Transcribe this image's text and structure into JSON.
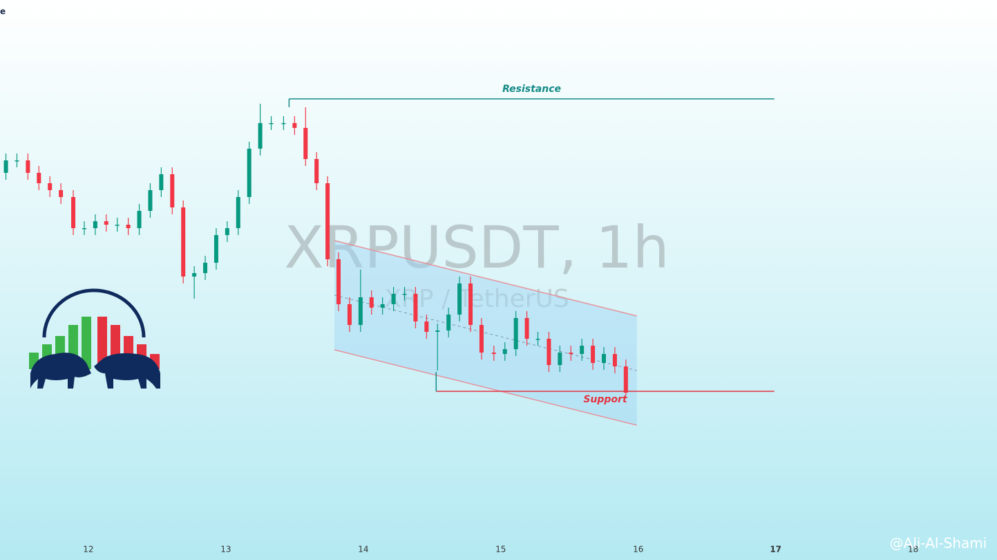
{
  "chart_data": {
    "type": "candlestick",
    "title_fragment": "e",
    "watermark": "XRPUSDT, 1h",
    "watermark_subtitle": "XRP / TetherUS",
    "credit": "@Ali-Al-Shami",
    "up_color": "#089981",
    "down_color": "#f23645",
    "x": [
      11.4,
      11.48,
      11.56,
      11.64,
      11.72,
      11.8,
      11.89,
      11.97,
      12.05,
      12.13,
      12.21,
      12.29,
      12.37,
      12.45,
      12.53,
      12.61,
      12.69,
      12.77,
      12.85,
      12.93,
      13.01,
      13.09,
      13.17,
      13.25,
      13.33,
      13.42,
      13.5,
      13.58,
      13.66,
      13.74,
      13.82,
      13.9,
      13.98,
      14.06,
      14.14,
      14.22,
      14.3,
      14.38,
      14.46,
      14.54,
      14.62,
      14.7,
      14.78,
      14.86,
      14.95,
      15.03,
      15.11,
      15.19,
      15.27,
      15.35,
      15.43,
      15.51,
      15.59,
      15.67,
      15.75,
      15.83,
      15.91
    ],
    "open": [
      530,
      548,
      548,
      530,
      515,
      505,
      495,
      450,
      450,
      460,
      455,
      455,
      450,
      475,
      505,
      528,
      480,
      380,
      385,
      400,
      440,
      450,
      495,
      565,
      602,
      602,
      602,
      595,
      550,
      515,
      405,
      340,
      310,
      350,
      335,
      340,
      355,
      355,
      315,
      300,
      302,
      325,
      370,
      310,
      270,
      268,
      275,
      320,
      290,
      290,
      252,
      270,
      268,
      280,
      255,
      268,
      250
    ],
    "high": [
      558,
      558,
      558,
      540,
      525,
      515,
      505,
      460,
      470,
      470,
      465,
      465,
      485,
      515,
      538,
      538,
      490,
      395,
      410,
      450,
      460,
      505,
      575,
      630,
      612,
      612,
      612,
      625,
      560,
      525,
      415,
      350,
      390,
      360,
      350,
      365,
      365,
      365,
      325,
      312,
      335,
      380,
      380,
      320,
      280,
      285,
      330,
      330,
      300,
      300,
      280,
      280,
      290,
      290,
      278,
      278,
      260
    ],
    "low": [
      520,
      538,
      520,
      505,
      495,
      485,
      440,
      440,
      440,
      445,
      445,
      440,
      440,
      465,
      495,
      470,
      370,
      348,
      375,
      390,
      430,
      440,
      485,
      555,
      592,
      592,
      585,
      540,
      505,
      395,
      330,
      300,
      300,
      325,
      325,
      330,
      345,
      305,
      290,
      244,
      292,
      315,
      300,
      260,
      258,
      258,
      265,
      280,
      280,
      242,
      242,
      258,
      258,
      245,
      245,
      240,
      208
    ],
    "close": [
      548,
      548,
      530,
      515,
      505,
      495,
      450,
      450,
      460,
      455,
      455,
      450,
      475,
      505,
      528,
      480,
      380,
      385,
      400,
      440,
      450,
      495,
      565,
      602,
      602,
      602,
      595,
      550,
      515,
      405,
      340,
      310,
      350,
      335,
      340,
      355,
      355,
      315,
      300,
      302,
      325,
      370,
      310,
      270,
      268,
      275,
      320,
      290,
      290,
      252,
      270,
      268,
      280,
      255,
      268,
      250,
      212
    ],
    "xlim": [
      11.357,
      18.61
    ],
    "xticks": [
      12,
      13,
      14,
      15,
      16,
      17,
      18
    ],
    "ylim": [
      0,
      780
    ],
    "levels": [
      {
        "label": "Resistance",
        "value": 637,
        "x": [
          13.46,
          16.99
        ],
        "color": "#138a86"
      },
      {
        "label": "Support",
        "value": 214,
        "x": [
          14.53,
          16.99
        ],
        "color": "#e5323f"
      }
    ],
    "channel": {
      "x": [
        13.79,
        15.99
      ],
      "upper": [
        432,
        323
      ],
      "lower": [
        274,
        165
      ],
      "mid": [
        353,
        244
      ]
    }
  }
}
